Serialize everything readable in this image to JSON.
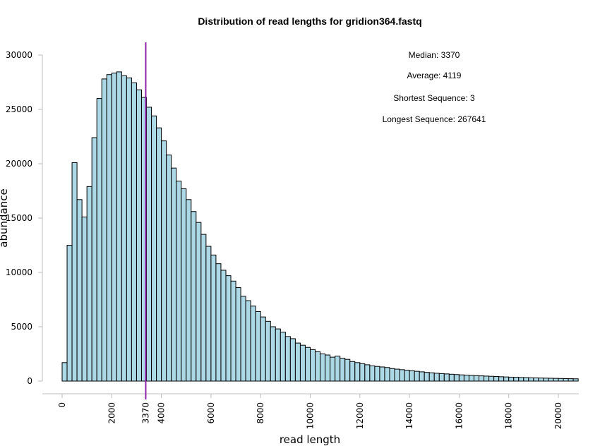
{
  "chart_data": {
    "type": "bar",
    "title": "Distribution of read lengths for gridion364.fastq",
    "xlabel": "read length",
    "ylabel": "abundance",
    "bin_width": 200,
    "xlim": [
      0,
      20800
    ],
    "ylim": [
      0,
      30000
    ],
    "x_ticks": [
      0,
      2000,
      3370,
      4000,
      6000,
      8000,
      10000,
      12000,
      14000,
      16000,
      18000,
      20000
    ],
    "y_ticks": [
      0,
      5000,
      10000,
      15000,
      20000,
      25000,
      30000
    ],
    "values": [
      1700,
      12500,
      20100,
      16700,
      15100,
      17900,
      22400,
      26000,
      27800,
      28200,
      28350,
      28450,
      28100,
      27900,
      27450,
      26800,
      26100,
      25200,
      24400,
      23300,
      22100,
      20800,
      19600,
      18400,
      17700,
      16700,
      15600,
      14600,
      13500,
      12400,
      11600,
      10800,
      10200,
      9700,
      9200,
      8600,
      7800,
      7400,
      6900,
      6400,
      5900,
      5500,
      5000,
      4800,
      4500,
      4100,
      3900,
      3500,
      3300,
      3100,
      2900,
      2700,
      2500,
      2400,
      2200,
      2300,
      2100,
      2000,
      1800,
      1700,
      1600,
      1500,
      1400,
      1350,
      1300,
      1250,
      1150,
      1100,
      1050,
      1000,
      950,
      900,
      850,
      800,
      760,
      720,
      690,
      660,
      630,
      600,
      570,
      550,
      520,
      500,
      480,
      460,
      440,
      420,
      400,
      380,
      360,
      350,
      330,
      320,
      300,
      290,
      280,
      270,
      260,
      250,
      240,
      230,
      220,
      210
    ],
    "median": 3370,
    "median_color": "#8e24aa",
    "bar_color": "#add8e6",
    "stats": [
      "Median: 3370",
      "Average: 4119",
      "Shortest Sequence: 3",
      "Longest Sequence: 267641"
    ]
  }
}
